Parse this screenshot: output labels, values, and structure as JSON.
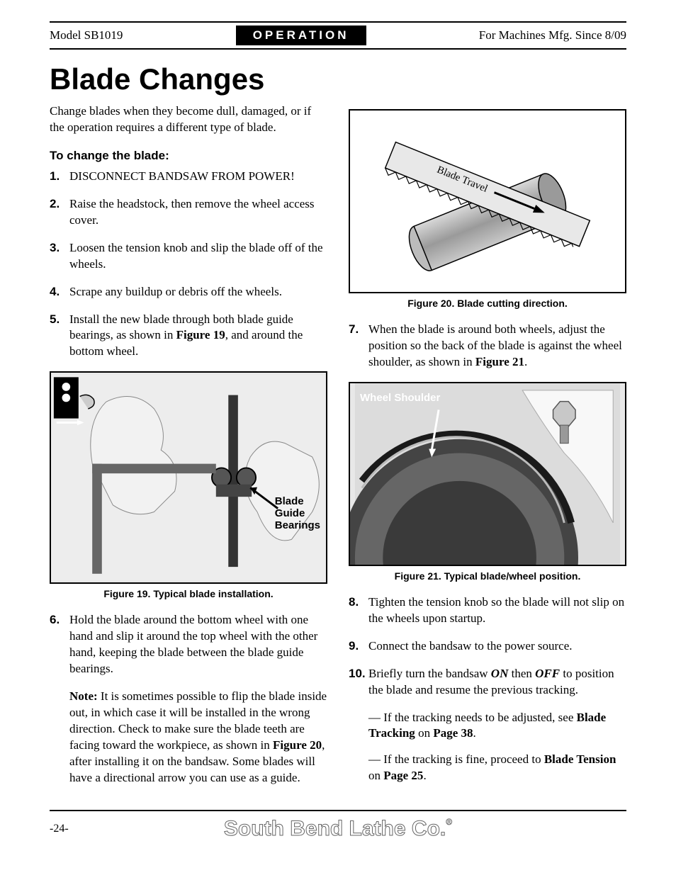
{
  "header": {
    "model": "Model SB1019",
    "section": "OPERATION",
    "mfg": "For Machines Mfg. Since 8/09"
  },
  "title": "Blade Changes",
  "intro": "Change blades when they become dull, damaged, or if the operation requires a different type of blade.",
  "subhead": "To change the blade:",
  "steps_left": [
    {
      "n": "1.",
      "html": "DISCONNECT BANDSAW FROM POWER!"
    },
    {
      "n": "2.",
      "html": "Raise the headstock, then remove the wheel access cover."
    },
    {
      "n": "3.",
      "html": "Loosen the tension knob and slip the blade off of the wheels."
    },
    {
      "n": "4.",
      "html": "Scrape any buildup or debris off the wheels."
    },
    {
      "n": "5.",
      "html": "Install the new blade through both blade guide bearings, as shown in <b>Figure 19</b>, and around the bottom wheel."
    }
  ],
  "fig19": {
    "caption": "Figure 19. Typical blade installation.",
    "label": "Blade\nGuide\nBearings"
  },
  "step6": {
    "n": "6.",
    "html": "Hold the blade around the bottom wheel with one hand and slip it around the top wheel with the other hand, keeping the blade between the blade guide bearings."
  },
  "note6": "<b>Note:</b> It is sometimes possible to flip the blade inside out, in which case it will be installed in the wrong direction. Check to make sure the blade teeth are facing toward the workpiece, as shown in <b>Figure 20</b>, after installing it on the bandsaw. Some blades will have a directional arrow you can use as a guide.",
  "fig20": {
    "caption": "Figure 20. Blade cutting direction.",
    "blade_label": "Blade Travel",
    "colors": {
      "blade_fill": "#e8e8e8",
      "cylinder_fill": "#b0b0b0",
      "cylinder_highlight": "#d8d8d8",
      "stroke": "#000000"
    }
  },
  "step7": {
    "n": "7.",
    "html": "When the blade is around both wheels, adjust the position so the back of the blade is against the wheel shoulder, as shown in <b>Figure 21</b>."
  },
  "fig21": {
    "caption": "Figure 21. Typical blade/wheel position.",
    "label": "Wheel Shoulder"
  },
  "steps_right": [
    {
      "n": "8.",
      "html": "Tighten the tension knob so the blade will not slip on the wheels upon startup."
    },
    {
      "n": "9.",
      "html": "Connect the bandsaw to the power source."
    },
    {
      "n": "10.",
      "html": "Briefly turn the bandsaw <b><i>ON</i></b> then <b><i>OFF</i></b> to position the blade and resume the previous tracking."
    }
  ],
  "sub_bullets": [
    "— If the tracking needs to be adjusted, see <b>Blade Tracking</b> on <b>Page 38</b>.",
    "— If the tracking is fine, proceed to <b>Blade Tension</b> on <b>Page 25</b>."
  ],
  "footer": {
    "page": "-24-",
    "brand": "South Bend Lathe Co."
  }
}
